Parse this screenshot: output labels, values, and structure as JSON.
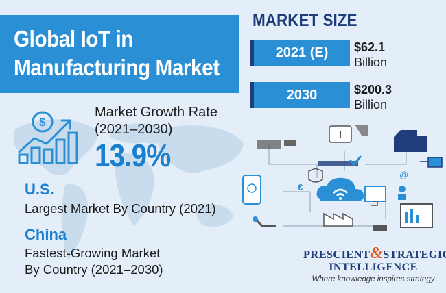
{
  "title": {
    "line1": "Global IoT in",
    "line2": "Manufacturing Market"
  },
  "growth": {
    "label_line1": "Market Growth Rate",
    "label_line2": "(2021–2030)",
    "value": "13.9%",
    "icon": "dollar-growth-chart-icon"
  },
  "us": {
    "name": "U.S.",
    "desc": "Largest Market By Country (2021)"
  },
  "china": {
    "name": "China",
    "desc_line1": "Fastest-Growing Market",
    "desc_line2": "By Country (2021–2030)"
  },
  "market_size": {
    "heading": "MARKET SIZE",
    "rows": [
      {
        "year": "2021 (E)",
        "value": "$62.1",
        "unit": "Billion"
      },
      {
        "year": "2030",
        "value": "$200.3",
        "unit": "Billion"
      }
    ]
  },
  "logo": {
    "word1": "PRESCIENT",
    "amp": "&",
    "word2": "STRATEGIC",
    "word3": "INTELLIGENCE",
    "tagline": "Where knowledge inspires strategy"
  },
  "colors": {
    "accent": "#2b8fd6",
    "navy": "#1f3d7a",
    "highlight": "#1b7fcf",
    "background": "#e3eef8",
    "logo_amp": "#e8571f"
  }
}
